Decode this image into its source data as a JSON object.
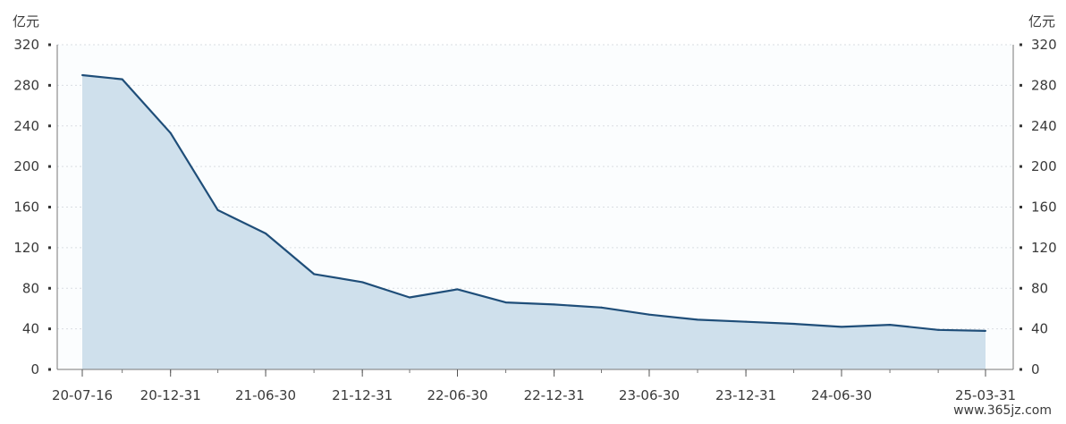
{
  "chart_data": {
    "type": "area",
    "left_unit": "亿元",
    "right_unit": "亿元",
    "ylim": [
      0,
      320
    ],
    "yticks": [
      0,
      40,
      80,
      120,
      160,
      200,
      240,
      280,
      320
    ],
    "x_tick_labels": [
      "20-07-16",
      "20-12-31",
      "21-06-30",
      "21-12-31",
      "22-06-30",
      "22-12-31",
      "23-06-30",
      "23-12-31",
      "24-06-30",
      "25-03-31"
    ],
    "x_tick_dates": [
      "2020-07-16",
      "2020-12-31",
      "2021-06-30",
      "2021-12-31",
      "2022-06-30",
      "2022-12-31",
      "2023-06-30",
      "2023-12-31",
      "2024-06-30",
      "2025-03-31"
    ],
    "xlim": [
      "2020-07-16",
      "2025-03-31"
    ],
    "grid": true,
    "series": [
      {
        "color": "#1f4e79",
        "fill": "#cfe0ec",
        "points": [
          [
            "2020-07-16",
            290
          ],
          [
            "2020-09-30",
            286
          ],
          [
            "2020-12-31",
            233
          ],
          [
            "2021-03-31",
            157
          ],
          [
            "2021-06-30",
            134
          ],
          [
            "2021-09-30",
            94
          ],
          [
            "2021-12-31",
            86
          ],
          [
            "2022-03-31",
            71
          ],
          [
            "2022-06-30",
            79
          ],
          [
            "2022-09-30",
            66
          ],
          [
            "2022-12-31",
            64
          ],
          [
            "2023-03-31",
            61
          ],
          [
            "2023-06-30",
            54
          ],
          [
            "2023-09-30",
            49
          ],
          [
            "2023-12-31",
            47
          ],
          [
            "2024-03-31",
            45
          ],
          [
            "2024-06-30",
            42
          ],
          [
            "2024-09-30",
            44
          ],
          [
            "2024-12-31",
            39
          ],
          [
            "2025-03-31",
            38
          ]
        ]
      }
    ]
  },
  "watermark": "www.365jz.com"
}
